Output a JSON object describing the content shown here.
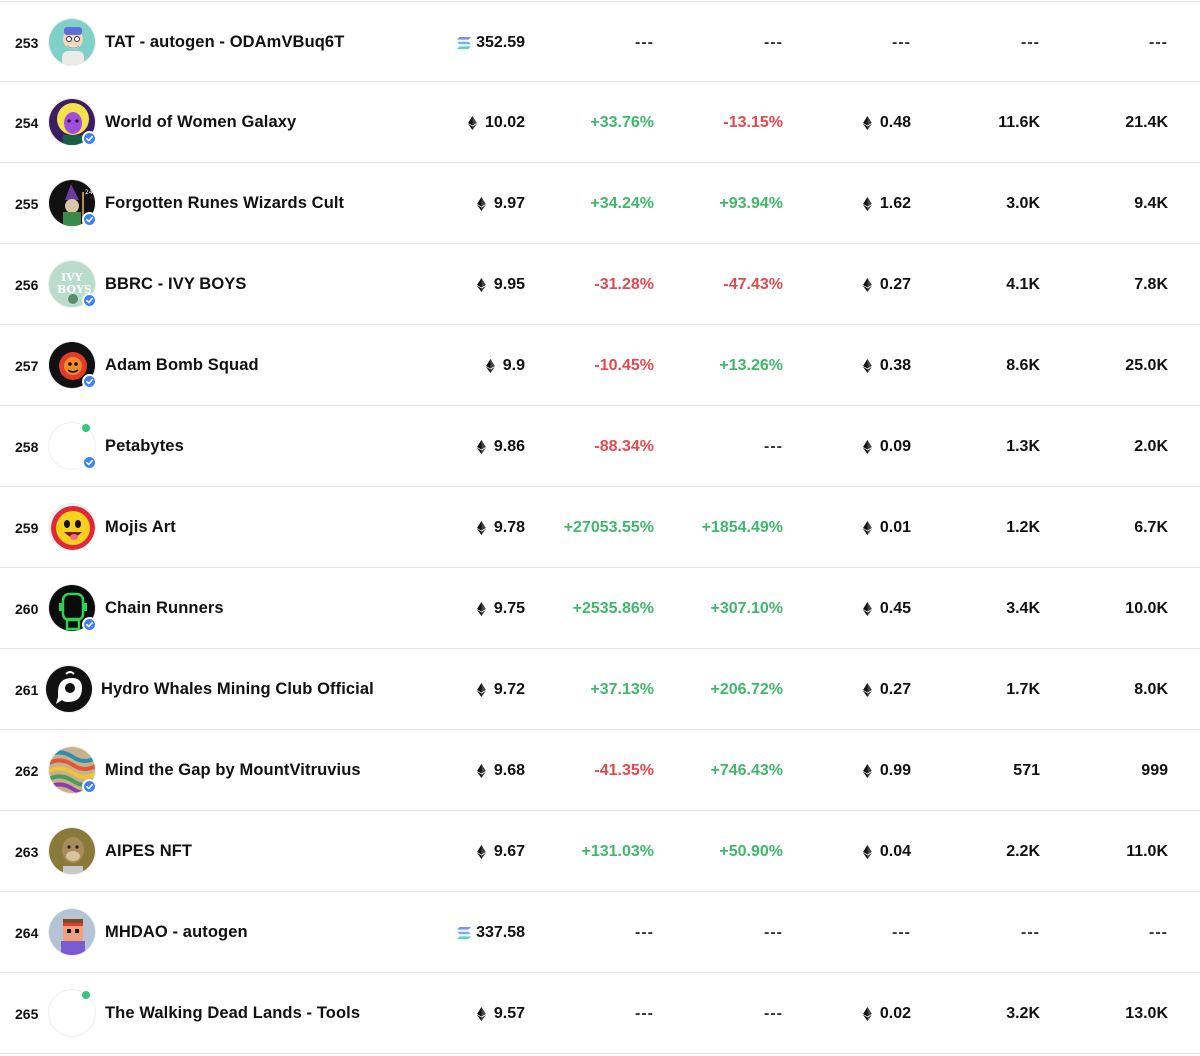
{
  "rows": [
    {
      "rank": "253",
      "name": "TAT - autogen - ODAmVBuq6T",
      "currency": "sol",
      "price": "352.59",
      "change1": "---",
      "change1_type": "dash",
      "change2": "---",
      "change2_type": "dash",
      "floor": "---",
      "floor_eth": false,
      "owners": "---",
      "items": "---",
      "verified": false,
      "new_dot": false,
      "avatar": "tat"
    },
    {
      "rank": "254",
      "name": "World of Women Galaxy",
      "currency": "eth",
      "price": "10.02",
      "change1": "+33.76%",
      "change1_type": "pos",
      "change2": "-13.15%",
      "change2_type": "neg",
      "floor": "0.48",
      "floor_eth": true,
      "owners": "11.6K",
      "items": "21.4K",
      "verified": true,
      "new_dot": false,
      "avatar": "wow"
    },
    {
      "rank": "255",
      "name": "Forgotten Runes Wizards Cult",
      "currency": "eth",
      "price": "9.97",
      "change1": "+34.24%",
      "change1_type": "pos",
      "change2": "+93.94%",
      "change2_type": "pos",
      "floor": "1.62",
      "floor_eth": true,
      "owners": "3.0K",
      "items": "9.4K",
      "verified": true,
      "new_dot": false,
      "avatar": "fr"
    },
    {
      "rank": "256",
      "name": "BBRC - IVY BOYS",
      "currency": "eth",
      "price": "9.95",
      "change1": "-31.28%",
      "change1_type": "neg",
      "change2": "-47.43%",
      "change2_type": "neg",
      "floor": "0.27",
      "floor_eth": true,
      "owners": "4.1K",
      "items": "7.8K",
      "verified": true,
      "new_dot": false,
      "avatar": "ivy"
    },
    {
      "rank": "257",
      "name": "Adam Bomb Squad",
      "currency": "eth",
      "price": "9.9",
      "change1": "-10.45%",
      "change1_type": "neg",
      "change2": "+13.26%",
      "change2_type": "pos",
      "floor": "0.38",
      "floor_eth": true,
      "owners": "8.6K",
      "items": "25.0K",
      "verified": true,
      "new_dot": false,
      "avatar": "abs"
    },
    {
      "rank": "258",
      "name": "Petabytes",
      "currency": "eth",
      "price": "9.86",
      "change1": "-88.34%",
      "change1_type": "neg",
      "change2": "---",
      "change2_type": "dash",
      "floor": "0.09",
      "floor_eth": true,
      "owners": "1.3K",
      "items": "2.0K",
      "verified": true,
      "new_dot": true,
      "avatar": "blank"
    },
    {
      "rank": "259",
      "name": "Mojis Art",
      "currency": "eth",
      "price": "9.78",
      "change1": "+27053.55%",
      "change1_type": "pos",
      "change2": "+1854.49%",
      "change2_type": "pos",
      "floor": "0.01",
      "floor_eth": true,
      "owners": "1.2K",
      "items": "6.7K",
      "verified": false,
      "new_dot": false,
      "avatar": "moji"
    },
    {
      "rank": "260",
      "name": "Chain Runners",
      "currency": "eth",
      "price": "9.75",
      "change1": "+2535.86%",
      "change1_type": "pos",
      "change2": "+307.10%",
      "change2_type": "pos",
      "floor": "0.45",
      "floor_eth": true,
      "owners": "3.4K",
      "items": "10.0K",
      "verified": true,
      "new_dot": false,
      "avatar": "cr"
    },
    {
      "rank": "261",
      "name": "Hydro Whales Mining Club Official",
      "currency": "eth",
      "price": "9.72",
      "change1": "+37.13%",
      "change1_type": "pos",
      "change2": "+206.72%",
      "change2_type": "pos",
      "floor": "0.27",
      "floor_eth": true,
      "owners": "1.7K",
      "items": "8.0K",
      "verified": false,
      "new_dot": false,
      "avatar": "hw"
    },
    {
      "rank": "262",
      "name": "Mind the Gap by MountVitruvius",
      "currency": "eth",
      "price": "9.68",
      "change1": "-41.35%",
      "change1_type": "neg",
      "change2": "+746.43%",
      "change2_type": "pos",
      "floor": "0.99",
      "floor_eth": true,
      "owners": "571",
      "items": "999",
      "verified": true,
      "new_dot": false,
      "avatar": "mtg"
    },
    {
      "rank": "263",
      "name": "AIPES NFT",
      "currency": "eth",
      "price": "9.67",
      "change1": "+131.03%",
      "change1_type": "pos",
      "change2": "+50.90%",
      "change2_type": "pos",
      "floor": "0.04",
      "floor_eth": true,
      "owners": "2.2K",
      "items": "11.0K",
      "verified": false,
      "new_dot": false,
      "avatar": "aipes"
    },
    {
      "rank": "264",
      "name": "MHDAO - autogen",
      "currency": "sol",
      "price": "337.58",
      "change1": "---",
      "change1_type": "dash",
      "change2": "---",
      "change2_type": "dash",
      "floor": "---",
      "floor_eth": false,
      "owners": "---",
      "items": "---",
      "verified": false,
      "new_dot": false,
      "avatar": "mhdao"
    },
    {
      "rank": "265",
      "name": "The Walking Dead Lands - Tools",
      "currency": "eth",
      "price": "9.57",
      "change1": "---",
      "change1_type": "dash",
      "change2": "---",
      "change2_type": "dash",
      "floor": "0.02",
      "floor_eth": true,
      "owners": "3.2K",
      "items": "13.0K",
      "verified": false,
      "new_dot": true,
      "avatar": "blank"
    }
  ],
  "colors": {
    "positive": "#3fb86b",
    "negative": "#e5484d",
    "verified": "#3b82f6",
    "new_dot": "#34c77b"
  }
}
